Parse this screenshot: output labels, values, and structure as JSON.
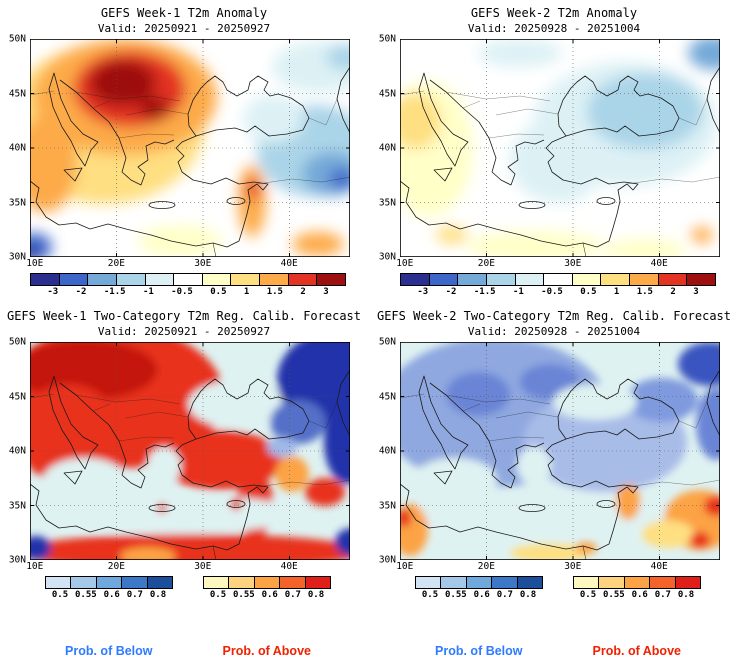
{
  "figure": {
    "background": "#ffffff"
  },
  "panels": [
    {
      "title": "GEFS Week-1 T2m Anomaly",
      "valid": "Valid: 20250921 - 20250927"
    },
    {
      "title": "GEFS Week-2 T2m Anomaly",
      "valid": "Valid: 20250928 - 20251004"
    },
    {
      "title": "GEFS Week-1 Two-Category T2m Reg. Calib. Forecast",
      "valid": "Valid: 20250921 - 20250927"
    },
    {
      "title": "GEFS Week-2 Two-Category T2m Reg. Calib. Forecast",
      "valid": "Valid: 20250928 - 20251004"
    }
  ],
  "axes": {
    "lat_ticks": [
      "50N",
      "45N",
      "40N",
      "35N",
      "30N"
    ],
    "lon_ticks": [
      "10E",
      "20E",
      "30E",
      "40E"
    ]
  },
  "colorbars": {
    "anomaly": {
      "tick_labels": [
        "-3",
        "-2",
        "-1.5",
        "-1",
        "-0.5",
        "0.5",
        "1",
        "1.5",
        "2",
        "3"
      ],
      "colors": [
        "#2b2f8f",
        "#3c66c9",
        "#74a9d8",
        "#aad4e8",
        "#ddf1f5",
        "#ffffff",
        "#ffffc8",
        "#fedf81",
        "#fdaa48",
        "#e33322",
        "#9e1010"
      ]
    },
    "prob_below": {
      "tick_labels": [
        "0.5",
        "0.55",
        "0.6",
        "0.7",
        "0.8"
      ],
      "colors": [
        "#d2e3f3",
        "#a6c8e8",
        "#6fa8dc",
        "#3c78c8",
        "#1b4f9c"
      ]
    },
    "prob_above": {
      "tick_labels": [
        "0.5",
        "0.55",
        "0.6",
        "0.7",
        "0.8"
      ],
      "colors": [
        "#fff7c0",
        "#fed37f",
        "#fca345",
        "#f4642a",
        "#e01f1a"
      ]
    }
  },
  "legend": {
    "below_label": "Prob. of Below",
    "above_label": "Prob. of Above",
    "below_color": "#2e7bff",
    "above_color": "#ee2200"
  },
  "chart_data": [
    {
      "panel": "top_left",
      "type": "heatmap",
      "model": "GEFS",
      "lead": "Week-1",
      "variable": "2m temperature anomaly (C)",
      "valid": "20250921 - 20250927",
      "lat_range": [
        "30N",
        "50N"
      ],
      "lon_range": [
        "10E",
        "~47E"
      ],
      "gridlines": {
        "lat": [
          "35N",
          "40N",
          "45N"
        ],
        "lon": [
          "20E",
          "30E",
          "40E"
        ]
      },
      "contour_levels": [
        -3,
        -2,
        -1.5,
        -1,
        -0.5,
        0.5,
        1,
        1.5,
        2,
        3
      ],
      "features": [
        {
          "region": "Carpathians / Balkans / Pannonia (17-28E, 42-49N)",
          "value": "+2 to >+3 (dark red core)"
        },
        {
          "region": "Broad west & central Europe / central Mediterranean",
          "value": "+1 to +2 (orange)"
        },
        {
          "region": "West edge 10E, 33-45N",
          "value": "+1 to +2"
        },
        {
          "region": "Levant coast band (~35E, 31-37N)",
          "value": "+1 to +3 narrow band"
        },
        {
          "region": "East Anatolia / Caucasus / Caspian (33-47E, 33-46N)",
          "value": "-0.5 to -2 (blue)"
        },
        {
          "region": "NE corner (40-47E, 47-50N)",
          "value": "-0.5 to -1"
        },
        {
          "region": "SW corner (10E, 30-31N)",
          "value": "-1 to -3 small pocket"
        },
        {
          "region": "North Africa south-center (23-32E, 30-32N)",
          "value": "+0.5 patches"
        }
      ]
    },
    {
      "panel": "top_right",
      "type": "heatmap",
      "model": "GEFS",
      "lead": "Week-2",
      "variable": "2m temperature anomaly (C)",
      "valid": "20250928 - 20251004",
      "lat_range": [
        "30N",
        "50N"
      ],
      "lon_range": [
        "10E",
        "~47E"
      ],
      "contour_levels": [
        -3,
        -2,
        -1.5,
        -1,
        -0.5,
        0.5,
        1,
        1.5,
        2,
        3
      ],
      "features": [
        {
          "region": "Black Sea / Anatolia / Aegean / NE quadrant (20-47E, 35-50N)",
          "value": "-0.5 to -1 (light blue)"
        },
        {
          "region": "Far NE corner (44-47E, 48-50N)",
          "value": "-1 to -1.5"
        },
        {
          "region": "Western edge (10-14E, 33-46N)",
          "value": "+0.5 to +1 (pale yellow)"
        },
        {
          "region": "North Africa coast (20-37E, 30-32N)",
          "value": "+0.5"
        },
        {
          "region": "Small spot ~43E, 32N",
          "value": "+1"
        }
      ]
    },
    {
      "panel": "bottom_left",
      "type": "heatmap",
      "model": "GEFS",
      "lead": "Week-1",
      "variable": "Two-category T2m regression-calibrated forecast probability",
      "valid": "20250921 - 20250927",
      "prob_levels": [
        0.5,
        0.55,
        0.6,
        0.7,
        0.8
      ],
      "features": [
        {
          "region": "Most land: Balkans, Italy, E Europe, W/C Anatolia, N Africa, Levant",
          "category": "above",
          "probability": "0.7 to >0.8"
        },
        {
          "region": "NE sector: E Black Sea, Caucasus, Caspian (33-47E, 40-50N)",
          "category": "below",
          "probability": "0.7 to >0.8"
        },
        {
          "region": "SW corner (10E, 30-32N)",
          "category": "below",
          "probability": "0.6 to 0.8"
        },
        {
          "region": "SE corner (37-43E, 30-33N)",
          "category": "below",
          "probability": "0.6 to 0.8"
        },
        {
          "region": "Mediterranean & W Black Sea waters",
          "category": "none",
          "probability": "<0.5"
        }
      ]
    },
    {
      "panel": "bottom_right",
      "type": "heatmap",
      "model": "GEFS",
      "lead": "Week-2",
      "variable": "Two-category T2m regression-calibrated forecast probability",
      "valid": "20250928 - 20251004",
      "prob_levels": [
        0.5,
        0.55,
        0.6,
        0.7,
        0.8
      ],
      "features": [
        {
          "region": "Most of SE Europe / Anatolia / Black Sea rim",
          "category": "below",
          "probability": "0.5 to 0.7 (light-medium blue)"
        },
        {
          "region": "Far NE corner & Caspian edge",
          "category": "below",
          "probability": "0.7 to 0.8"
        },
        {
          "region": "SE sector: Syria / Iraq / N Saudi (33-47E, 30-36N)",
          "category": "above",
          "probability": "0.6 to >0.8 spots"
        },
        {
          "region": "W edge (10E, 30-35N, Tunisia/Libya)",
          "category": "above",
          "probability": "0.6 to 0.8"
        },
        {
          "region": "Egypt / Libya coast patches",
          "category": "above",
          "probability": "0.5 to 0.6"
        },
        {
          "region": "Seas",
          "category": "none",
          "probability": "<0.5"
        }
      ]
    }
  ]
}
